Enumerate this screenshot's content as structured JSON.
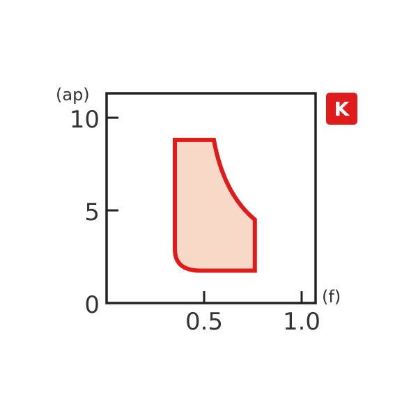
{
  "chart_data": {
    "type": "area",
    "xlabel": "(f)",
    "ylabel": "(ap)",
    "xlim": [
      0,
      1.05
    ],
    "ylim": [
      0,
      10.5
    ],
    "x_ticks": [
      {
        "value": 0.5,
        "label": "0.5"
      },
      {
        "value": 1.0,
        "label": "1.0"
      }
    ],
    "y_ticks": [
      {
        "value": 0,
        "label": "0"
      },
      {
        "value": 5,
        "label": "5"
      },
      {
        "value": 10,
        "label": "10"
      }
    ],
    "grid": false,
    "region": {
      "points": [
        {
          "f": 0.35,
          "ap": 8.8
        },
        {
          "f": 0.55,
          "ap": 8.8
        },
        {
          "f": 0.76,
          "ap": 4.5
        },
        {
          "f": 0.76,
          "ap": 1.75
        },
        {
          "f": 0.48,
          "ap": 1.75
        },
        {
          "f": 0.35,
          "ap": 2.9
        }
      ],
      "fill_color": "#f8d9c8",
      "stroke_color": "#e01b1b"
    },
    "badge": {
      "label": "K",
      "color": "#e01b1b"
    }
  }
}
